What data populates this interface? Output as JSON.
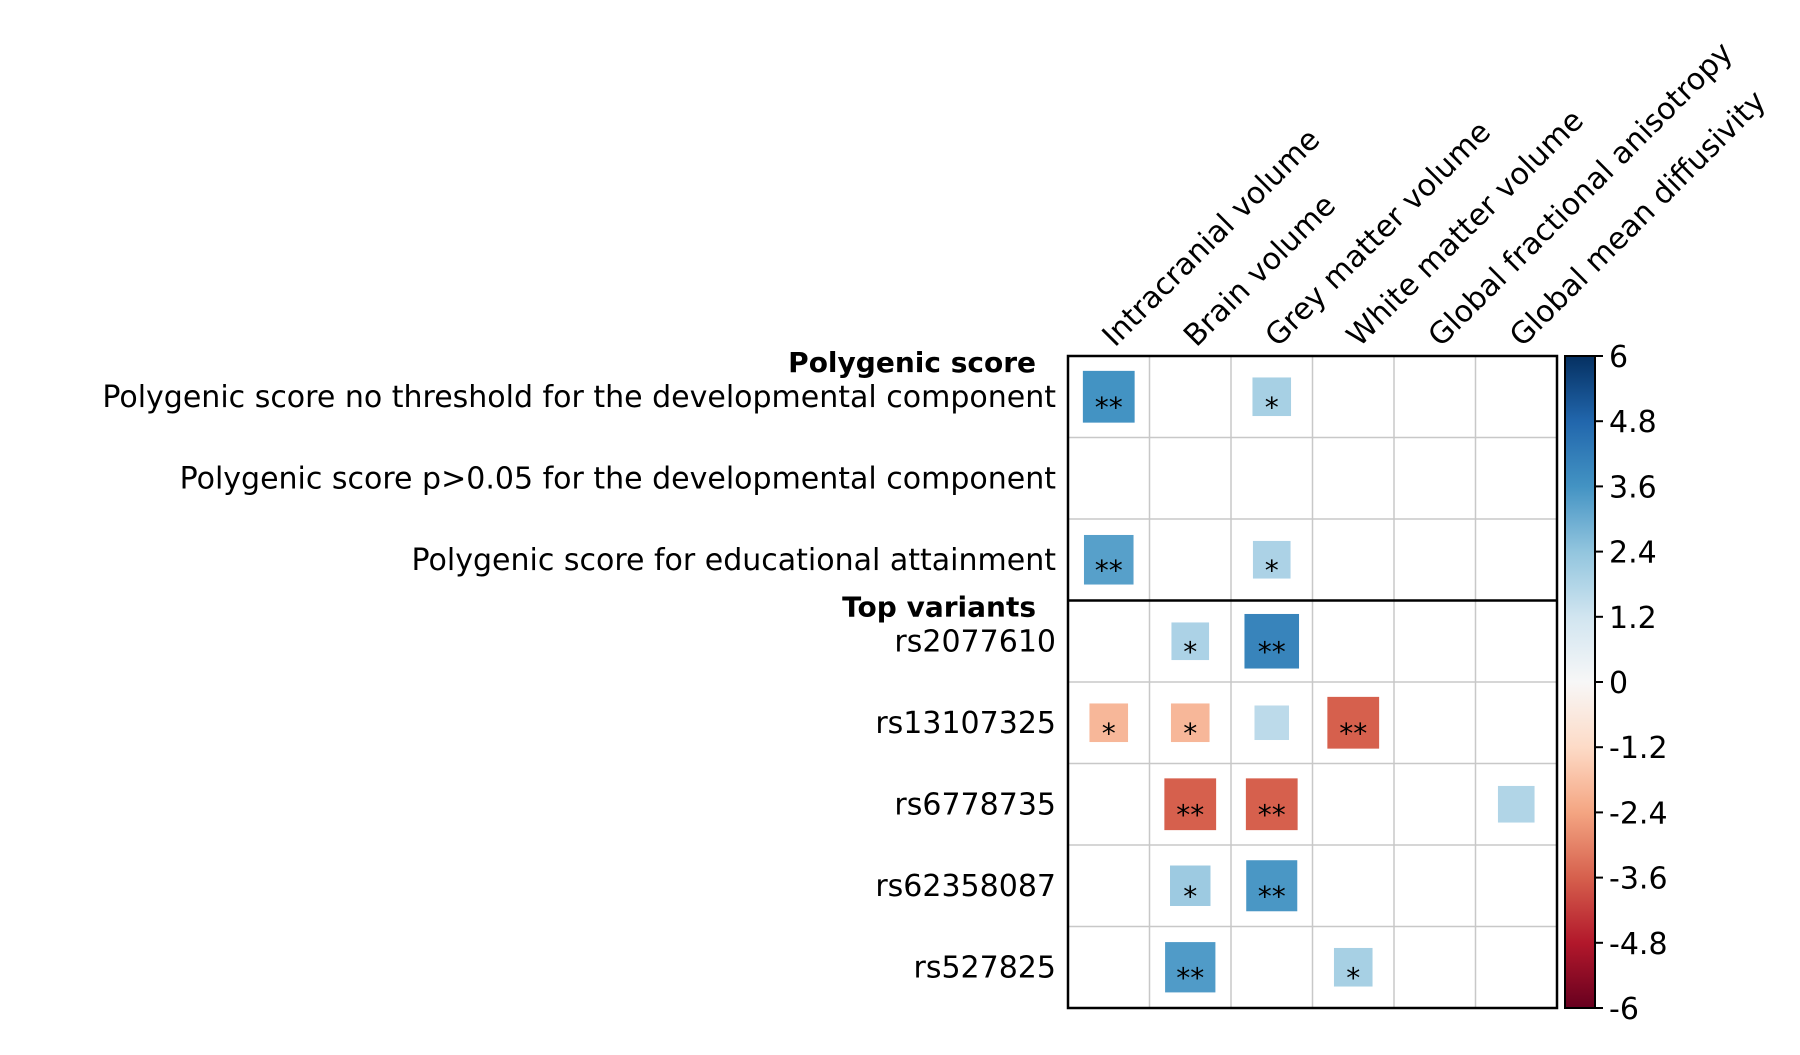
{
  "chart_data": {
    "type": "heatmap",
    "title": "",
    "columns": [
      "Intracranial volume",
      "Brain volume",
      "Grey matter volume",
      "White matter volume",
      "Global fractional anisotropy",
      "Global mean diffusivity"
    ],
    "groups": [
      {
        "label": "Polygenic score",
        "rows": [
          "Polygenic score no threshold for the developmental component",
          "Polygenic score p>0.05 for the developmental component",
          "Polygenic score for educational attainment"
        ]
      },
      {
        "label": "Top variants",
        "rows": [
          "rs2077610",
          "rs13107325",
          "rs6778735",
          "rs62358087",
          "rs527825"
        ]
      }
    ],
    "values": [
      [
        3.6,
        null,
        2.0,
        null,
        null,
        null
      ],
      [
        null,
        null,
        null,
        null,
        null,
        null
      ],
      [
        3.3,
        null,
        1.9,
        null,
        null,
        null
      ],
      [
        null,
        1.9,
        4.0,
        null,
        null,
        null
      ],
      [
        -2.0,
        -2.0,
        1.6,
        -3.6,
        null,
        null
      ],
      [
        null,
        -3.6,
        -3.6,
        null,
        null,
        1.8
      ],
      [
        null,
        2.2,
        3.5,
        null,
        null,
        null
      ],
      [
        null,
        3.4,
        null,
        2.0,
        null,
        null
      ]
    ],
    "significance": [
      [
        "**",
        "",
        "*",
        "",
        "",
        ""
      ],
      [
        "",
        "",
        "",
        "",
        "",
        ""
      ],
      [
        "**",
        "",
        "*",
        "",
        "",
        ""
      ],
      [
        "",
        "*",
        "**",
        "",
        "",
        ""
      ],
      [
        "*",
        "*",
        "",
        "**",
        "",
        ""
      ],
      [
        "",
        "**",
        "**",
        "",
        "",
        ""
      ],
      [
        "",
        "*",
        "**",
        "",
        "",
        ""
      ],
      [
        "",
        "**",
        "",
        "*",
        "",
        ""
      ]
    ],
    "color_range": [
      -6,
      6
    ],
    "colorbar_ticks": [
      "6",
      "4.8",
      "3.6",
      "2.4",
      "1.2",
      "0",
      "-1.2",
      "-2.4",
      "-3.6",
      "-4.8",
      "-6"
    ],
    "colormap": "RdBu",
    "grid": true
  }
}
